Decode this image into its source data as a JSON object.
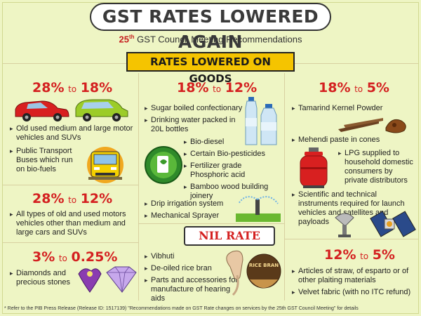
{
  "title": "GST RATES LOWERED AGAIN",
  "subtitle": {
    "num": "25",
    "sup": "th",
    "text": " GST Council Meeting Recommendations"
  },
  "goods_banner": "RATES LOWERED ON GOODS",
  "sections": {
    "s28_18": {
      "from": "28%",
      "to_word": "to",
      "to": "18%",
      "items": [
        "Old used medium and large motor vehicles and SUVs",
        "Public Transport Buses which run on bio-fuels"
      ]
    },
    "s28_12": {
      "from": "28%",
      "to_word": "to",
      "to": "12%",
      "items": [
        "All types of old and used motors vehicles other than medium and large cars and SUVs"
      ]
    },
    "s3_025": {
      "from": "3%",
      "to_word": "to",
      "to": "0.25%",
      "items": [
        "Diamonds and precious stones"
      ]
    },
    "s18_12": {
      "from": "18%",
      "to_word": "to",
      "to": "12%",
      "items_top": [
        "Sugar boiled confectionary",
        "Drinking water packed in 20L bottles"
      ],
      "items_indent": [
        "Bio-diesel",
        "Certain Bio-pesticides",
        "Fertilizer grade Phosphoric acid",
        "Bamboo wood building joinery"
      ],
      "items_bottom": [
        "Drip irrigation system",
        "Mechanical Sprayer"
      ]
    },
    "nil": {
      "label": "NIL RATE",
      "items": [
        "Vibhuti",
        "De-oiled rice bran",
        "Parts and accessories for manufacture of hearing aids"
      ],
      "rice_label": "RICE BRAN"
    },
    "s18_5": {
      "from": "18%",
      "to_word": "to",
      "to": "5%",
      "items_top": [
        "Tamarind Kernel Powder",
        "Mehendi paste in cones"
      ],
      "items_indent": [
        "LPG supplied to household domestic consumers by private distributors"
      ],
      "items_bottom": [
        "Scientific and technical instruments required for launch vehicles and satellites and payloads"
      ]
    },
    "s12_5": {
      "from": "12%",
      "to_word": "to",
      "to": "5%",
      "items": [
        "Articles of straw, of esparto or of other plaiting materials",
        "Velvet fabric (with no ITC refund)"
      ]
    }
  },
  "footer": "* Refer to the PIB Press Release (Release ID: 1517139) \"Recommendations made on GST Rate changes on services by the 25th GST Council Meeting\" for details",
  "colors": {
    "background": "#eef5c4",
    "rate_red": "#d42020",
    "banner_yellow": "#f5c400"
  }
}
